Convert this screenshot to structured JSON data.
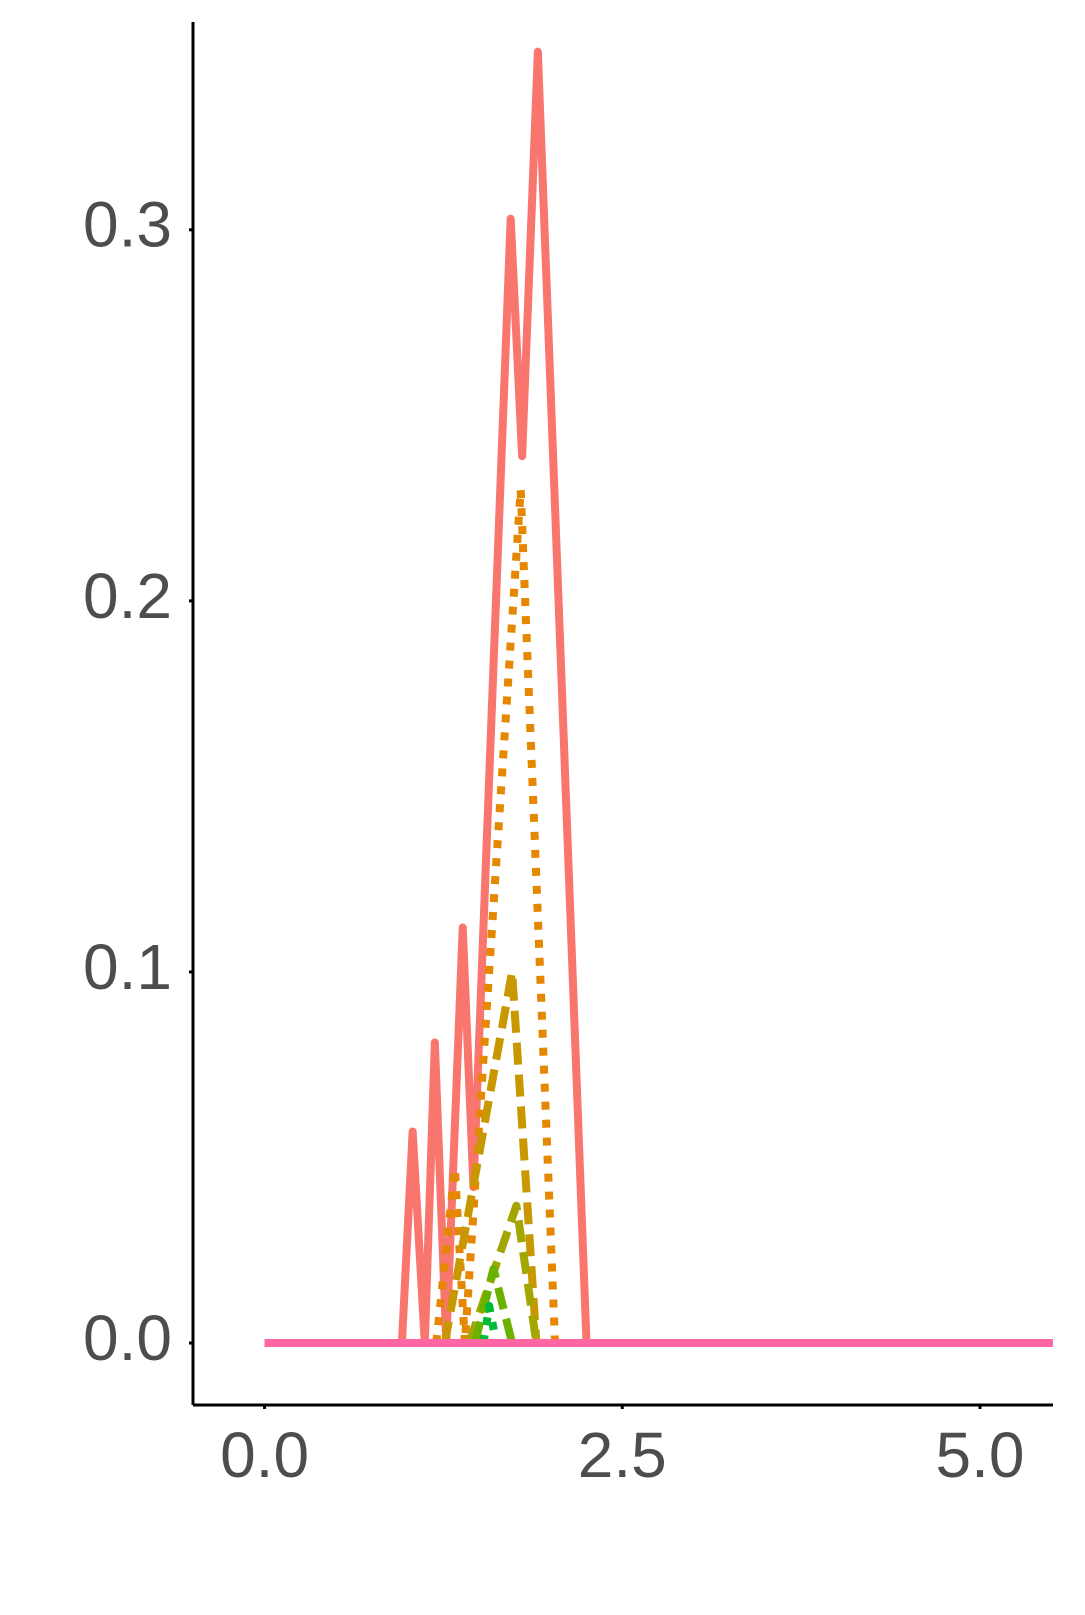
{
  "chart_data": {
    "type": "line",
    "xlim": [
      -0.5,
      5.51
    ],
    "ylim": [
      -0.0167,
      0.356
    ],
    "xticks": [
      {
        "value": 0,
        "label": "0.0"
      },
      {
        "value": 2.5,
        "label": "2.5"
      },
      {
        "value": 5,
        "label": "5.0"
      }
    ],
    "yticks": [
      {
        "value": 0,
        "label": "0.0"
      },
      0.1,
      0.2,
      0.3
    ],
    "grid": false,
    "series": [
      {
        "color": "#F8766D",
        "dash": "solid",
        "x": [
          0,
          0.96,
          1.035,
          1.12,
          1.19,
          1.27,
          1.385,
          1.46,
          1.72,
          1.8,
          1.91,
          2.25
        ],
        "values": [
          0,
          0,
          0.057,
          0,
          0.081,
          0,
          0.112,
          0.042,
          0.303,
          0.239,
          0.348,
          0
        ]
      },
      {
        "color": "#E58700",
        "dash": "dotted",
        "x": [
          1.2,
          1.33,
          1.4,
          1.79,
          2.03
        ],
        "values": [
          0,
          0.047,
          0,
          0.23,
          0
        ]
      },
      {
        "color": "#C99800",
        "dash": "dashed",
        "x": [
          1.26,
          1.73,
          1.9
        ],
        "values": [
          0,
          0.1,
          0
        ]
      },
      {
        "color": "#A3A500",
        "dash": "dashed",
        "x": [
          1.43,
          1.76,
          1.9
        ],
        "values": [
          0,
          0.037,
          0
        ]
      },
      {
        "color": "#6BB100",
        "dash": "dashed",
        "x": [
          1.47,
          1.6,
          1.73
        ],
        "values": [
          0,
          0.02,
          0
        ]
      },
      {
        "color": "#00BA38",
        "dash": "dotted",
        "x": [
          1.53,
          1.57,
          1.62
        ],
        "values": [
          0,
          0.01,
          0
        ]
      },
      {
        "color": "#FF67A4",
        "dash": "solid",
        "x": [
          0,
          5.51
        ],
        "values": [
          0,
          0
        ]
      }
    ]
  }
}
